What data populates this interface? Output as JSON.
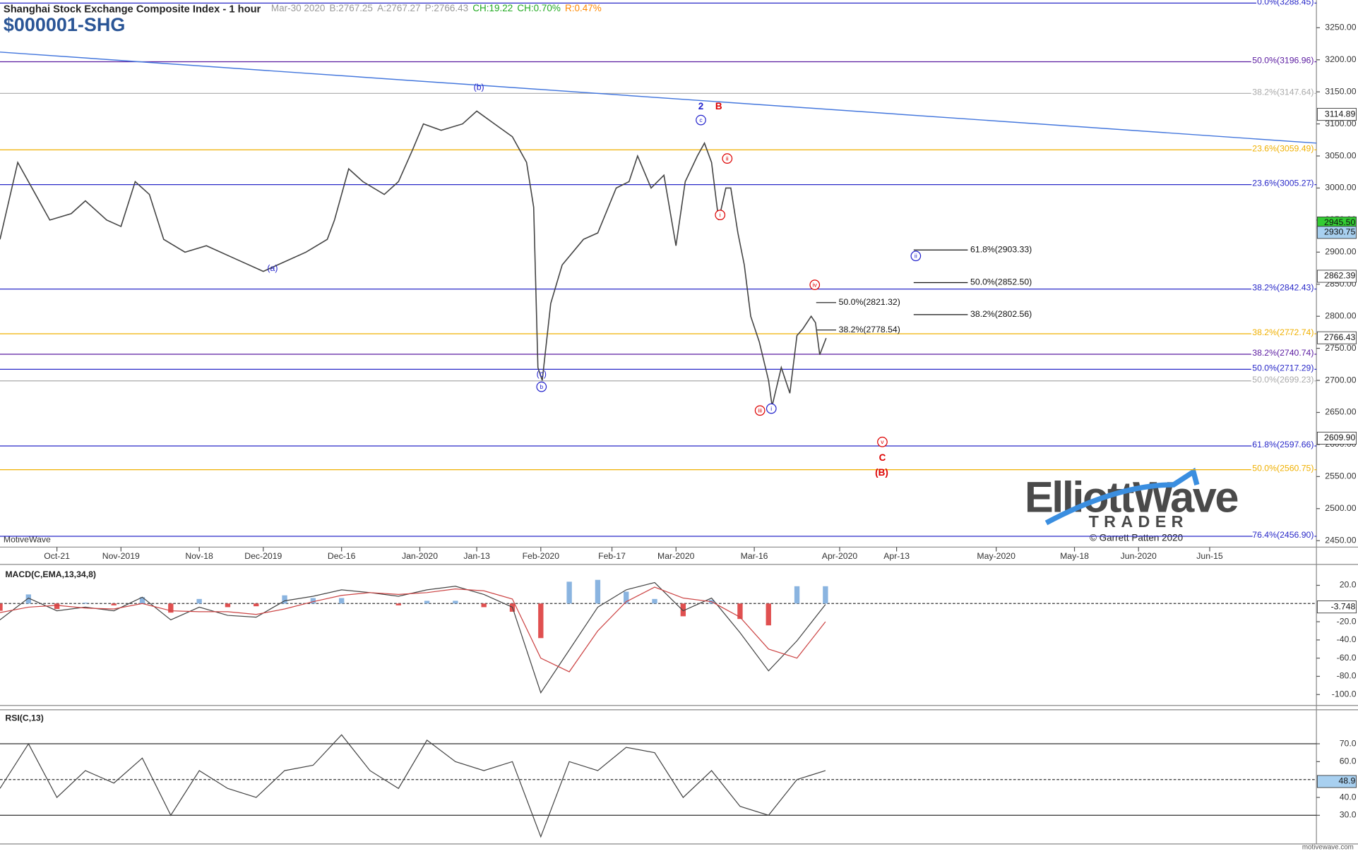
{
  "chart_data": [
    {
      "type": "line",
      "title": "Shanghai Stock Exchange Composite Index - 1 hour",
      "symbol": "$000001-SHG",
      "quote": [
        {
          "text": "Mar-30 2020",
          "color": "#999999"
        },
        {
          "text": "B:2767.25",
          "color": "#999999"
        },
        {
          "text": "A:2767.27",
          "color": "#999999"
        },
        {
          "text": "P:2766.43",
          "color": "#999999"
        },
        {
          "text": "CH:19.22",
          "color": "#22aa22"
        },
        {
          "text": "CH:0.70%",
          "color": "#22aa22"
        },
        {
          "text": "R:0.47%",
          "color": "#ff8800"
        }
      ],
      "x": [
        0,
        2.5,
        5,
        7,
        10,
        12,
        15,
        17,
        19,
        21,
        23,
        26,
        29,
        33,
        37,
        39,
        43,
        46,
        47,
        49,
        51,
        54,
        56,
        58,
        59.5,
        62,
        65,
        67,
        69.5,
        72,
        74,
        75,
        75.6,
        76.2,
        77.4,
        79,
        82,
        84,
        86.6,
        88.4,
        89.6,
        91.5,
        93.3,
        95,
        96.3,
        98,
        99,
        100,
        101,
        102,
        102.7,
        103.7,
        104.6,
        105.5,
        106.7,
        108,
        108.5,
        109.8,
        111,
        112,
        112.8,
        114,
        114.6,
        115.2,
        116.1
      ],
      "values": [
        2920,
        3040,
        2990,
        2950,
        2960,
        2980,
        2950,
        2940,
        3010,
        2990,
        2920,
        2900,
        2910,
        2890,
        2870,
        2880,
        2900,
        2920,
        2950,
        3030,
        3010,
        2990,
        3010,
        3060,
        3100,
        3090,
        3100,
        3120,
        3100,
        3080,
        3040,
        2970,
        2720,
        2700,
        2820,
        2880,
        2920,
        2930,
        3000,
        3010,
        3050,
        3000,
        3020,
        2910,
        3010,
        3050,
        3070,
        3040,
        2950,
        3000,
        3000,
        2930,
        2880,
        2800,
        2760,
        2700,
        2660,
        2720,
        2680,
        2770,
        2780,
        2800,
        2790,
        2740,
        2766
      ],
      "color": "#444444",
      "xlim": [
        0,
        185
      ],
      "xticks": [
        {
          "value": 8,
          "label": "Oct-21"
        },
        {
          "value": 17,
          "label": "Nov-2019"
        },
        {
          "value": 28,
          "label": "Nov-18"
        },
        {
          "value": 37,
          "label": "Dec-2019"
        },
        {
          "value": 48,
          "label": "Dec-16"
        },
        {
          "value": 59,
          "label": "Jan-2020"
        },
        {
          "value": 67,
          "label": "Jan-13"
        },
        {
          "value": 76,
          "label": "Feb-2020"
        },
        {
          "value": 86,
          "label": "Feb-17"
        },
        {
          "value": 95,
          "label": "Mar-2020"
        },
        {
          "value": 106,
          "label": "Mar-16"
        },
        {
          "value": 118,
          "label": "Apr-2020"
        },
        {
          "value": 126,
          "label": "Apr-13"
        },
        {
          "value": 140,
          "label": "May-2020"
        },
        {
          "value": 151,
          "label": "May-18"
        },
        {
          "value": 160,
          "label": "Jun-2020"
        },
        {
          "value": 170,
          "label": "Jun-15"
        }
      ],
      "ylim": [
        2440,
        3293
      ],
      "yticks": [
        {
          "value": 2450,
          "label": "2450.00"
        },
        {
          "value": 2500,
          "label": "2500.00"
        },
        {
          "value": 2550,
          "label": "2550.00"
        },
        {
          "value": 2600,
          "label": "2600.00"
        },
        {
          "value": 2650,
          "label": "2650.00"
        },
        {
          "value": 2700,
          "label": "2700.00"
        },
        {
          "value": 2750,
          "label": "2750.00"
        },
        {
          "value": 2800,
          "label": "2800.00"
        },
        {
          "value": 2850,
          "label": "2850.00"
        },
        {
          "value": 2900,
          "label": "2900.00"
        },
        {
          "value": 2950,
          "label": "2950.00"
        },
        {
          "value": 3000,
          "label": "3000.00"
        },
        {
          "value": 3050,
          "label": "3050.00"
        },
        {
          "value": 3100,
          "label": "3100.00"
        },
        {
          "value": 3150,
          "label": "3150.00"
        },
        {
          "value": 3200,
          "label": "3200.00"
        },
        {
          "value": 3250,
          "label": "3250.00"
        }
      ],
      "levels": [
        {
          "label": "0.0%(3288.45)",
          "value": 3288.45,
          "color": "#2828c8"
        },
        {
          "label": "50.0%(3196.96)",
          "value": 3196.96,
          "color": "#5a1aa0"
        },
        {
          "label": "38.2%(3147.64)",
          "value": 3147.64,
          "color": "#aaaaaa"
        },
        {
          "label": "23.6%(3059.49)",
          "value": 3059.49,
          "color": "#f0b000"
        },
        {
          "label": "23.6%(3005.27)",
          "value": 3005.27,
          "color": "#2828c8"
        },
        {
          "label": "38.2%(2842.43)",
          "value": 2842.43,
          "color": "#2828c8"
        },
        {
          "label": "38.2%(2772.74)",
          "value": 2772.74,
          "color": "#f0b000"
        },
        {
          "label": "38.2%(2740.74)",
          "value": 2740.74,
          "color": "#5a1aa0"
        },
        {
          "label": "50.0%(2717.29)",
          "value": 2717.29,
          "color": "#2828c8"
        },
        {
          "label": "50.0%(2699.23)",
          "value": 2699.23,
          "color": "#aaaaaa"
        },
        {
          "label": "61.8%(2597.66)",
          "value": 2597.66,
          "color": "#2828c8"
        },
        {
          "label": "50.0%(2560.75)",
          "value": 2560.75,
          "color": "#f0b000"
        },
        {
          "label": "76.4%(2456.90)",
          "value": 2456.9,
          "color": "#2828c8"
        }
      ],
      "projections": [
        {
          "label": "61.8%(2903.33)",
          "value": 2903.33,
          "x": [
            128.4,
            136
          ]
        },
        {
          "label": "50.0%(2852.50)",
          "value": 2852.5,
          "x": [
            128.4,
            136
          ]
        },
        {
          "label": "38.2%(2802.56)",
          "value": 2802.56,
          "x": [
            128.4,
            136
          ]
        },
        {
          "label": "50.0%(2821.32)",
          "value": 2821.32,
          "x": [
            114.7,
            117.5
          ]
        },
        {
          "label": "38.2%(2778.54)",
          "value": 2778.54,
          "x": [
            114.7,
            117.5
          ]
        }
      ],
      "trendline": {
        "x": [
          0,
          185
        ],
        "y": [
          3212,
          3070
        ],
        "color": "#4477dd"
      },
      "price_tags": [
        {
          "value": 3114.89,
          "label": "3114.89",
          "color": "#ffffff"
        },
        {
          "value": 2945.5,
          "label": "2945.50",
          "color": "#33cc33"
        },
        {
          "value": 2930.75,
          "label": "2930.75",
          "color": "#a8d0f0"
        },
        {
          "value": 2862.39,
          "label": "2862.39",
          "color": "#ffffff"
        },
        {
          "value": 2766.43,
          "label": "2766.43",
          "color": "#ffffff"
        },
        {
          "value": 2609.9,
          "label": "2609.90",
          "color": "#ffffff"
        }
      ],
      "annotations": [
        {
          "text": "(b)",
          "x": 67.3,
          "y": 3157,
          "color": "#2222cc"
        },
        {
          "text": "(a)",
          "x": 38.3,
          "y": 2875,
          "color": "#2222cc"
        },
        {
          "text": "(c)",
          "x": 76.1,
          "y": 2710,
          "color": "#2222cc"
        },
        {
          "text": "b",
          "x": 76.1,
          "y": 2690,
          "color": "#2222cc",
          "circled": true
        },
        {
          "text": "2",
          "x": 98.5,
          "y": 3127,
          "color": "#2222cc",
          "bold": true
        },
        {
          "text": "B",
          "x": 101,
          "y": 3127,
          "color": "#dd0000",
          "bold": true
        },
        {
          "text": "c",
          "x": 98.5,
          "y": 3106,
          "color": "#2222cc",
          "circled": true
        },
        {
          "text": "ii",
          "x": 102.2,
          "y": 3046,
          "color": "#dd0000",
          "circled": true
        },
        {
          "text": "i",
          "x": 101.2,
          "y": 2958,
          "color": "#dd0000",
          "circled": true
        },
        {
          "text": "iii",
          "x": 106.8,
          "y": 2653,
          "color": "#dd0000",
          "circled": true
        },
        {
          "text": "i",
          "x": 108.4,
          "y": 2656,
          "color": "#2222cc",
          "circled": true
        },
        {
          "text": "iv",
          "x": 114.5,
          "y": 2849,
          "color": "#dd0000",
          "circled": true
        },
        {
          "text": "ii",
          "x": 128.7,
          "y": 2894,
          "color": "#2222cc",
          "circled": true
        },
        {
          "text": "v",
          "x": 124,
          "y": 2604,
          "color": "#dd0000",
          "circled": true
        },
        {
          "text": "C",
          "x": 124,
          "y": 2579,
          "color": "#dd0000",
          "bold": true
        },
        {
          "text": "(B)",
          "x": 123.9,
          "y": 2556,
          "color": "#dd0000",
          "bold": true
        }
      ],
      "source": "MotiveWave",
      "copyright": "© Garrett Patten 2020",
      "watermark": "motivewave.com",
      "logo": [
        "ElliottWave",
        "TRADER"
      ]
    },
    {
      "type": "macd",
      "title": "MACD(C,EMA,13,34,8)",
      "x": [
        0,
        4,
        8,
        12,
        16,
        20,
        24,
        28,
        32,
        36,
        40,
        44,
        48,
        52,
        56,
        60,
        64,
        68,
        72,
        76,
        80,
        84,
        88,
        92,
        96,
        100,
        104,
        108,
        112,
        116
      ],
      "series": [
        {
          "color": "#444444",
          "values": [
            -18,
            6,
            -8,
            -4,
            -8,
            7,
            -18,
            -4,
            -13,
            -15,
            3,
            8,
            15,
            12,
            8,
            15,
            19,
            10,
            -4,
            -98,
            -51,
            -4,
            15,
            23,
            -8,
            6,
            -32,
            -74,
            -41,
            -1
          ]
        },
        {
          "color": "#cc4444",
          "values": [
            -10,
            -4,
            -2,
            -5,
            -6,
            0,
            -8,
            -9,
            -9,
            -12,
            -6,
            2,
            9,
            12,
            10,
            12,
            16,
            14,
            5,
            -60,
            -75,
            -30,
            2,
            18,
            6,
            2,
            -15,
            -50,
            -60,
            -20
          ]
        }
      ],
      "histogram": {
        "values": [
          -8,
          10,
          -6,
          1,
          -2,
          7,
          -10,
          5,
          -4,
          -3,
          9,
          6,
          6,
          0,
          -2,
          3,
          3,
          -4,
          -9,
          -38,
          24,
          26,
          13,
          5,
          -14,
          4,
          -17,
          -24,
          19,
          19
        ],
        "up_color": "#8ab4e0",
        "down_color": "#e05050"
      },
      "ylim": [
        -112,
        43
      ],
      "yticks": [
        {
          "value": 20,
          "label": "20.0"
        },
        {
          "value": -20,
          "label": "-20.0"
        },
        {
          "value": -40,
          "label": "-40.0"
        },
        {
          "value": -60,
          "label": "-60.0"
        },
        {
          "value": -80,
          "label": "-80.0"
        },
        {
          "value": -100,
          "label": "-100.0"
        }
      ],
      "zero": 0,
      "last": {
        "value": -3.748,
        "label": "-3.748",
        "color": "#ffffff"
      }
    },
    {
      "type": "rsi",
      "title": "RSI(C,13)",
      "x": [
        0,
        4,
        8,
        12,
        16,
        20,
        24,
        28,
        32,
        36,
        40,
        44,
        48,
        52,
        56,
        60,
        64,
        68,
        72,
        76,
        80,
        84,
        88,
        92,
        96,
        100,
        104,
        108,
        112,
        116
      ],
      "values": [
        45,
        70,
        40,
        55,
        48,
        62,
        30,
        55,
        45,
        40,
        55,
        58,
        75,
        55,
        45,
        72,
        60,
        55,
        60,
        18,
        60,
        55,
        68,
        65,
        40,
        55,
        35,
        30,
        50,
        55
      ],
      "color": "#444444",
      "ylim": [
        14,
        89
      ],
      "yticks": [
        {
          "value": 70,
          "label": "70.0"
        },
        {
          "value": 60,
          "label": "60.0"
        },
        {
          "value": 40,
          "label": "40.0"
        },
        {
          "value": 30,
          "label": "30.0"
        }
      ],
      "bands": [
        30,
        70
      ],
      "mid": 50,
      "last": {
        "value": 48.9,
        "label": "48.9",
        "color": "#a8d0f0"
      }
    }
  ]
}
